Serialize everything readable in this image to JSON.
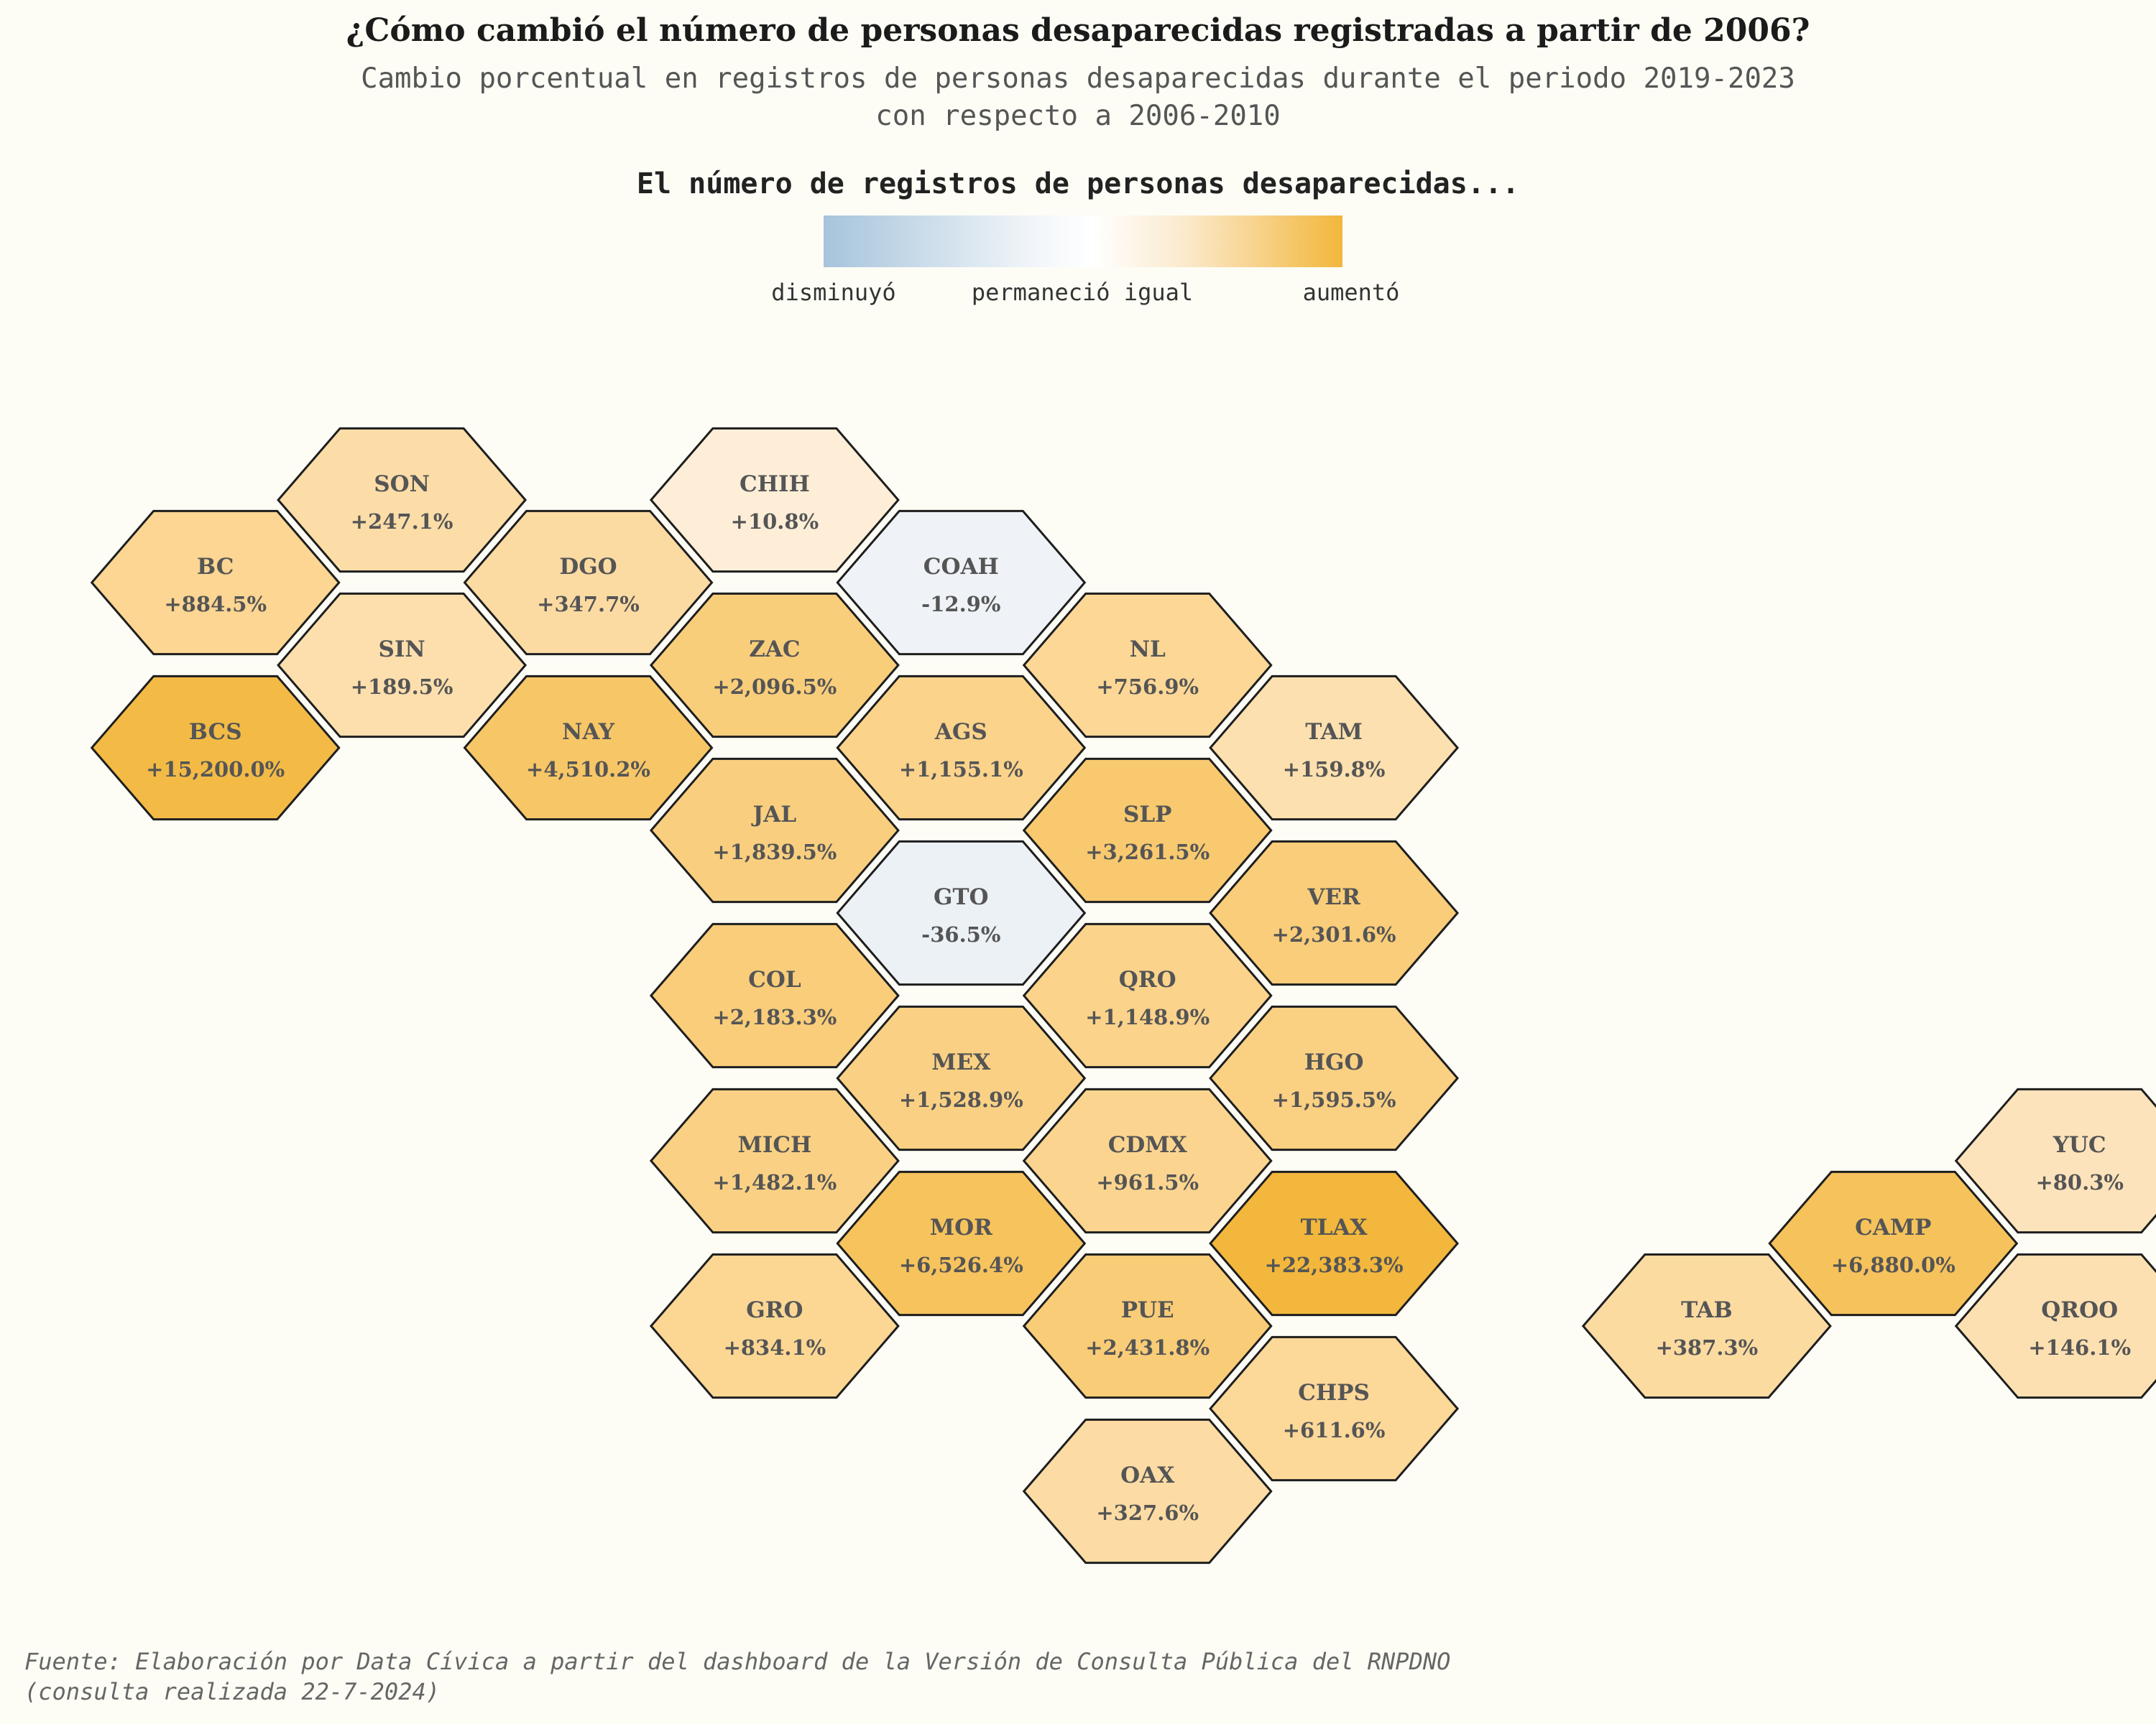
{
  "title": "¿Cómo cambió el número de personas desaparecidas registradas a partir de 2006?",
  "subtitle": {
    "line1": "Cambio porcentual en registros de personas desaparecidas durante el periodo 2019-2023",
    "line2": "con respecto a 2006-2010"
  },
  "legend": {
    "title": "El número de registros de personas desaparecidas...",
    "labels": [
      "disminuyó",
      "permaneció igual",
      "aumentó"
    ],
    "colors": [
      "#a7c4dc",
      "#ffffff",
      "#f2b73c"
    ]
  },
  "source": {
    "line1": "Fuente: Elaboración por Data Cívica a partir del dashboard de la Versión de Consulta Pública del RNPDNO",
    "line2": "(consulta realizada 22-7-2024)"
  },
  "states": [
    {
      "abbr": "SON",
      "value": "+247.1%",
      "change": 247.1,
      "col": 3,
      "row": 0
    },
    {
      "abbr": "CHIH",
      "value": "+10.8%",
      "change": 10.8,
      "col": 7,
      "row": 0
    },
    {
      "abbr": "BC",
      "value": "+884.5%",
      "change": 884.5,
      "col": 1,
      "row": 1
    },
    {
      "abbr": "DGO",
      "value": "+347.7%",
      "change": 347.7,
      "col": 5,
      "row": 1
    },
    {
      "abbr": "COAH",
      "value": "-12.9%",
      "change": -12.9,
      "col": 9,
      "row": 1
    },
    {
      "abbr": "SIN",
      "value": "+189.5%",
      "change": 189.5,
      "col": 3,
      "row": 2
    },
    {
      "abbr": "ZAC",
      "value": "+2,096.5%",
      "change": 2096.5,
      "col": 7,
      "row": 2
    },
    {
      "abbr": "NL",
      "value": "+756.9%",
      "change": 756.9,
      "col": 11,
      "row": 2
    },
    {
      "abbr": "BCS",
      "value": "+15,200.0%",
      "change": 15200.0,
      "col": 1,
      "row": 3
    },
    {
      "abbr": "NAY",
      "value": "+4,510.2%",
      "change": 4510.2,
      "col": 5,
      "row": 3
    },
    {
      "abbr": "AGS",
      "value": "+1,155.1%",
      "change": 1155.1,
      "col": 9,
      "row": 3
    },
    {
      "abbr": "TAM",
      "value": "+159.8%",
      "change": 159.8,
      "col": 13,
      "row": 3
    },
    {
      "abbr": "JAL",
      "value": "+1,839.5%",
      "change": 1839.5,
      "col": 7,
      "row": 4
    },
    {
      "abbr": "SLP",
      "value": "+3,261.5%",
      "change": 3261.5,
      "col": 11,
      "row": 4
    },
    {
      "abbr": "GTO",
      "value": "-36.5%",
      "change": -36.5,
      "col": 9,
      "row": 5
    },
    {
      "abbr": "VER",
      "value": "+2,301.6%",
      "change": 2301.6,
      "col": 13,
      "row": 5
    },
    {
      "abbr": "COL",
      "value": "+2,183.3%",
      "change": 2183.3,
      "col": 7,
      "row": 6
    },
    {
      "abbr": "QRO",
      "value": "+1,148.9%",
      "change": 1148.9,
      "col": 11,
      "row": 6
    },
    {
      "abbr": "MEX",
      "value": "+1,528.9%",
      "change": 1528.9,
      "col": 9,
      "row": 7
    },
    {
      "abbr": "HGO",
      "value": "+1,595.5%",
      "change": 1595.5,
      "col": 13,
      "row": 7
    },
    {
      "abbr": "MICH",
      "value": "+1,482.1%",
      "change": 1482.1,
      "col": 7,
      "row": 8
    },
    {
      "abbr": "CDMX",
      "value": "+961.5%",
      "change": 961.5,
      "col": 11,
      "row": 8
    },
    {
      "abbr": "YUC",
      "value": "+80.3%",
      "change": 80.3,
      "col": 21,
      "row": 8
    },
    {
      "abbr": "MOR",
      "value": "+6,526.4%",
      "change": 6526.4,
      "col": 9,
      "row": 9
    },
    {
      "abbr": "TLAX",
      "value": "+22,383.3%",
      "change": 22383.3,
      "col": 13,
      "row": 9
    },
    {
      "abbr": "CAMP",
      "value": "+6,880.0%",
      "change": 6880.0,
      "col": 19,
      "row": 9
    },
    {
      "abbr": "GRO",
      "value": "+834.1%",
      "change": 834.1,
      "col": 7,
      "row": 10
    },
    {
      "abbr": "PUE",
      "value": "+2,431.8%",
      "change": 2431.8,
      "col": 11,
      "row": 10
    },
    {
      "abbr": "TAB",
      "value": "+387.3%",
      "change": 387.3,
      "col": 17,
      "row": 10
    },
    {
      "abbr": "QROO",
      "value": "+146.1%",
      "change": 146.1,
      "col": 21,
      "row": 10
    },
    {
      "abbr": "CHPS",
      "value": "+611.6%",
      "change": 611.6,
      "col": 13,
      "row": 11
    },
    {
      "abbr": "OAX",
      "value": "+327.6%",
      "change": 327.6,
      "col": 11,
      "row": 12
    }
  ]
}
